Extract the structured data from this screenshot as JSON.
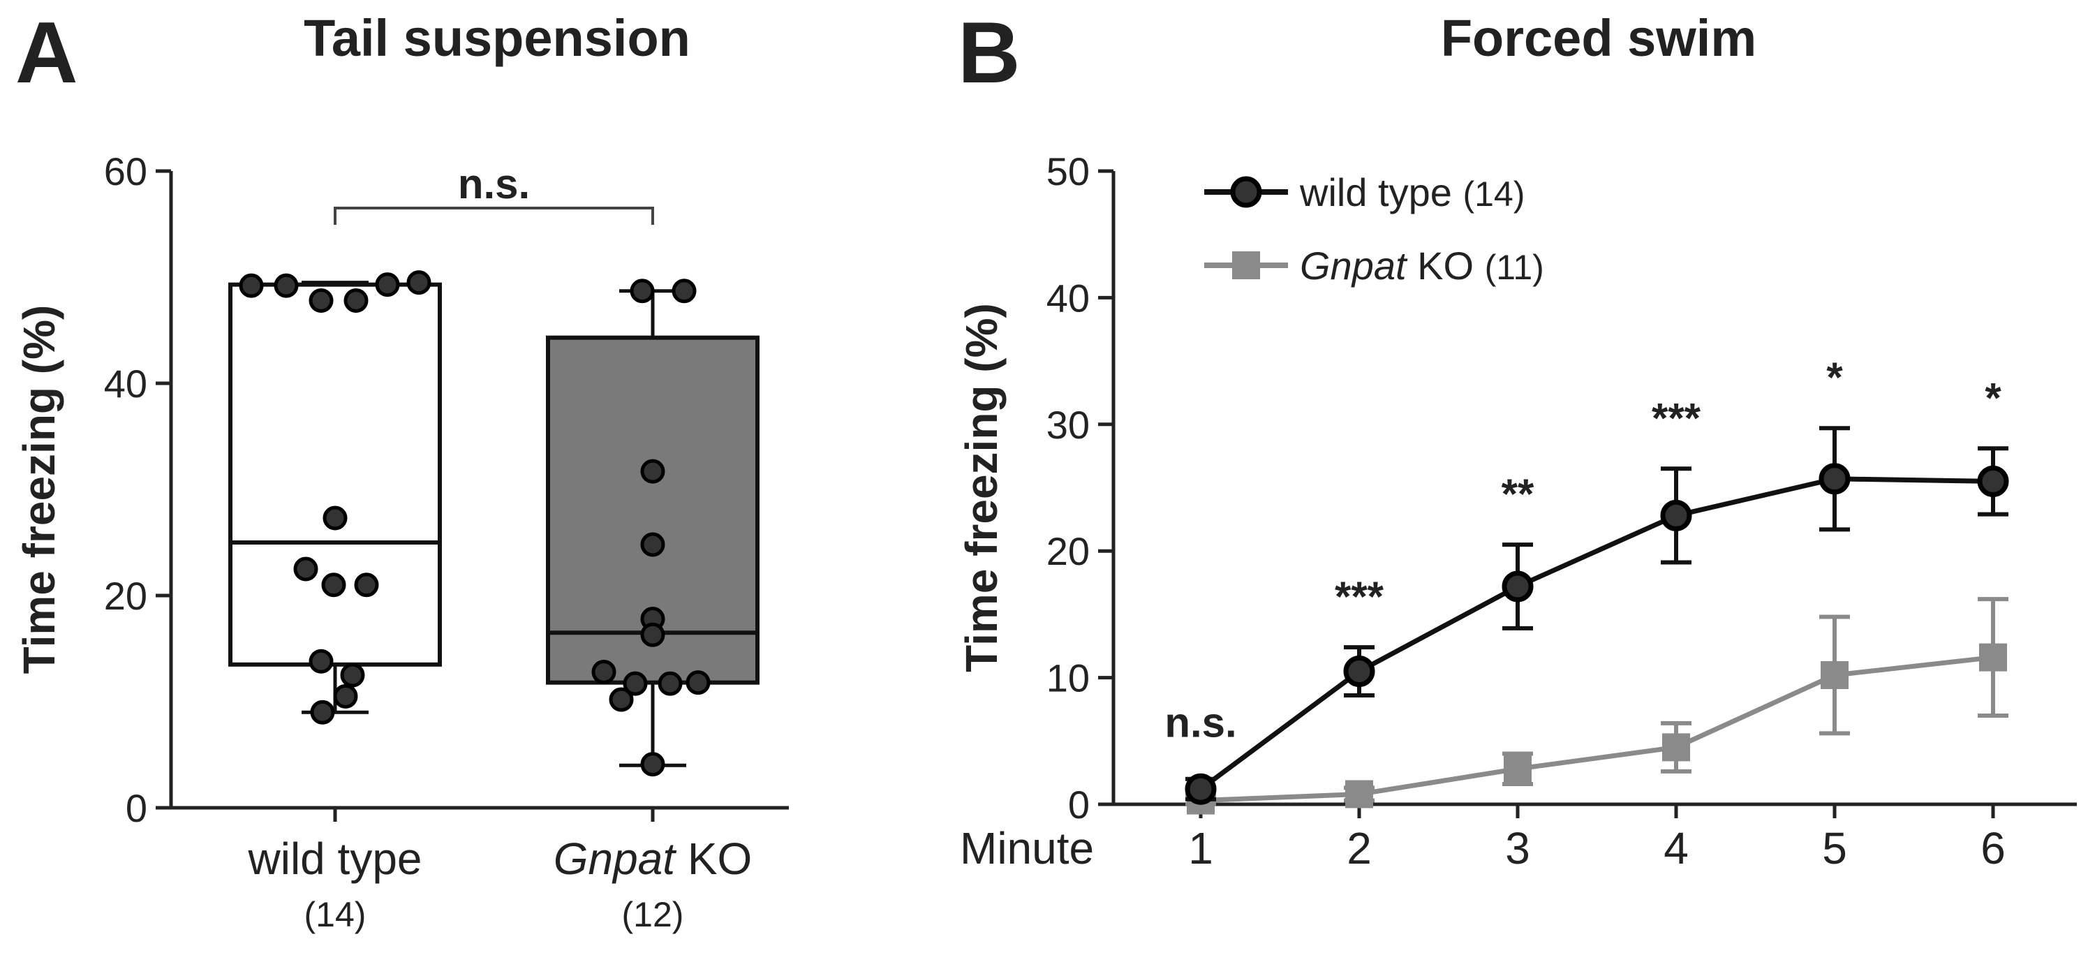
{
  "panels": {
    "a": {
      "letter": "A",
      "title": "Tail suspension"
    },
    "b": {
      "letter": "B",
      "title": "Forced swim"
    }
  },
  "chart_data": [
    {
      "type": "box",
      "panel": "A",
      "title": "Tail suspension",
      "ylabel": "Time freezing (%)",
      "ylim": [
        0,
        60
      ],
      "yticks": [
        "0",
        "20",
        "40",
        "60"
      ],
      "significance": "n.s.",
      "groups": [
        {
          "name": "wild type",
          "name_italic": "",
          "n_label": "(14)",
          "min": 9,
          "q1": 13.5,
          "median": 25,
          "q3": 49.3,
          "max": 49.5,
          "fill": "#ffffff",
          "points": [
            49.2,
            49.2,
            47.8,
            47.8,
            49.3,
            49.5,
            27.3,
            22.5,
            21,
            21,
            13.8,
            12.5,
            10.5,
            9
          ]
        },
        {
          "name": " KO",
          "name_italic": "Gnpat",
          "n_label": "(12)",
          "min": 4,
          "q1": 11.8,
          "median": 16.5,
          "q3": 44.3,
          "max": 48.7,
          "fill": "#7a7a7a",
          "points": [
            48.7,
            48.7,
            31.7,
            24.8,
            17.8,
            16.3,
            12.8,
            11.7,
            11.7,
            10.2,
            11.8,
            4.1
          ]
        }
      ]
    },
    {
      "type": "line",
      "panel": "B",
      "title": "Forced swim",
      "xlabel": "Minute",
      "ylabel": "Time freezing (%)",
      "ylim": [
        0,
        50
      ],
      "yticks": [
        "0",
        "10",
        "20",
        "30",
        "40",
        "50"
      ],
      "x": [
        1,
        2,
        3,
        4,
        5,
        6
      ],
      "significance": [
        "n.s.",
        "***",
        "**",
        "***",
        "*",
        "*"
      ],
      "series": [
        {
          "name": "wild type ",
          "name_italic": "",
          "n_label": "(14)",
          "marker": "circle",
          "color": "#111111",
          "values": [
            1.2,
            10.5,
            17.2,
            22.8,
            25.7,
            25.5
          ],
          "err": [
            0.8,
            1.9,
            3.3,
            3.7,
            4.0,
            2.6
          ]
        },
        {
          "name": " KO ",
          "name_italic": "Gnpat",
          "n_label": "(11)",
          "marker": "square",
          "color": "#8a8a8a",
          "values": [
            0.3,
            0.8,
            2.8,
            4.5,
            10.2,
            11.6
          ],
          "err": [
            0.4,
            0.5,
            1.2,
            1.9,
            4.6,
            4.6
          ]
        }
      ]
    }
  ]
}
